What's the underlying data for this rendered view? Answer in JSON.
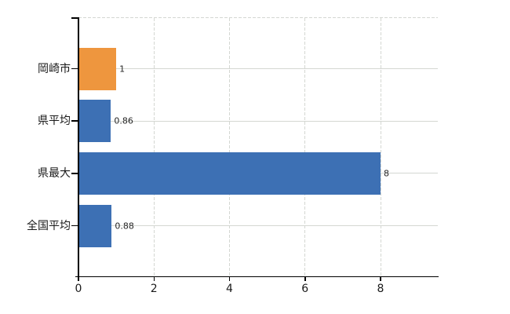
{
  "chart_data": {
    "type": "bar",
    "orientation": "horizontal",
    "title": "",
    "xlabel": "",
    "ylabel": "",
    "categories": [
      "岡崎市",
      "県平均",
      "県最大",
      "全国平均"
    ],
    "values": [
      1,
      0.86,
      8,
      0.88
    ],
    "value_labels": [
      "1",
      "0.86",
      "8",
      "0.88"
    ],
    "bar_colors": [
      "#EE963E",
      "#3D70B4",
      "#3D70B4",
      "#3D70B4"
    ],
    "x_ticks": [
      0,
      2,
      4,
      6,
      8
    ],
    "xlim": [
      0,
      9.52
    ],
    "grid": true,
    "legend": false,
    "colors": {
      "highlight_bar": "#EE963E",
      "default_bar": "#3D70B4",
      "gridline": "#d4d7d2",
      "axis": "#000000",
      "text": "#1a1a1a"
    }
  }
}
